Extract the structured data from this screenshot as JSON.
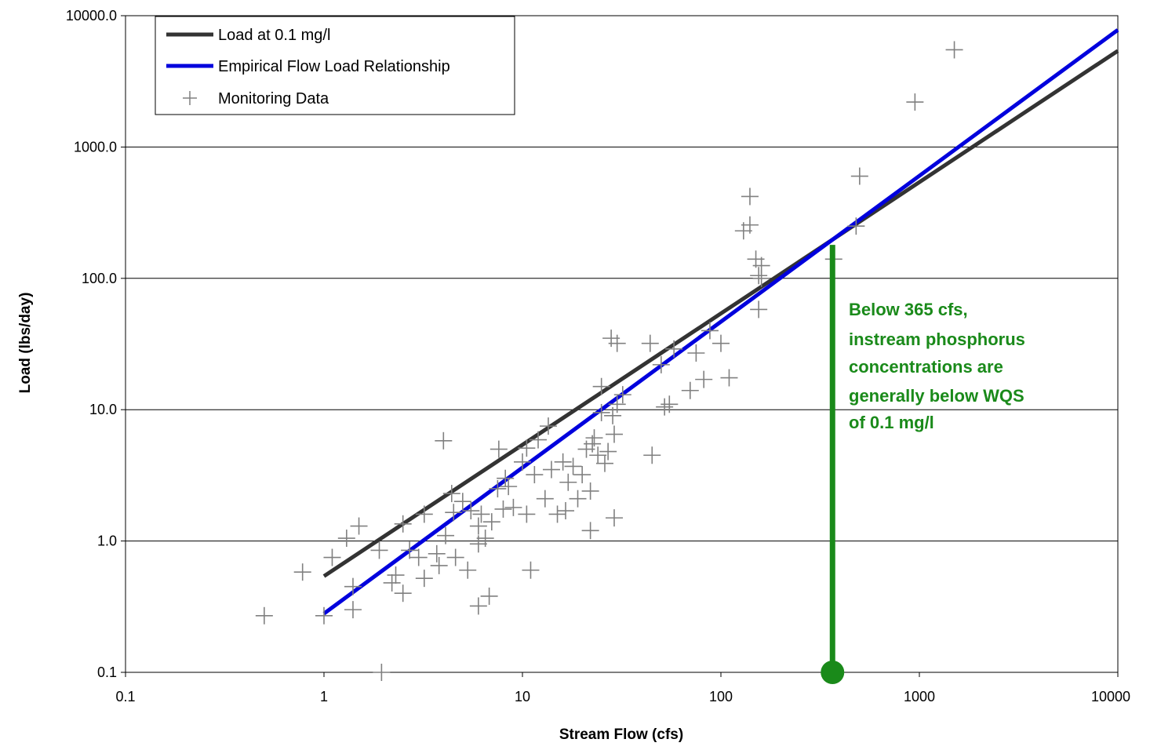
{
  "chart_data": {
    "type": "scatter",
    "title": "",
    "xlabel": "Stream Flow (cfs)",
    "ylabel": "Load (lbs/day)",
    "x_scale": "log",
    "y_scale": "log",
    "xlim": [
      0.1,
      10000
    ],
    "ylim": [
      0.1,
      10000
    ],
    "x_ticks": [
      "0.1",
      "1",
      "10",
      "100",
      "1000",
      "10000"
    ],
    "y_ticks": [
      "0.1",
      "1.0",
      "10.0",
      "100.0",
      "1000.0",
      "10000.0"
    ],
    "grid": "horizontal",
    "legend_position": "top-left",
    "colors": {
      "load_line": "#333333",
      "empirical_line": "#0000dd",
      "monitoring_marker": "#808080",
      "annotation": "#1a8a1a"
    },
    "series": [
      {
        "name": "Load at 0.1 mg/l",
        "kind": "line",
        "x": [
          1,
          10,
          100,
          1000,
          3000,
          5000,
          10000
        ],
        "y": [
          0.54,
          5.4,
          54,
          540,
          1620,
          2700,
          5400
        ]
      },
      {
        "name": "Empirical Flow Load Relationship",
        "kind": "line",
        "x": [
          1,
          10000
        ],
        "y": [
          0.28,
          7800
        ]
      },
      {
        "name": "Monitoring Data",
        "kind": "scatter",
        "points": [
          [
            0.5,
            0.27
          ],
          [
            0.78,
            0.58
          ],
          [
            1.0,
            0.27
          ],
          [
            1.1,
            0.75
          ],
          [
            1.3,
            1.05
          ],
          [
            1.4,
            0.3
          ],
          [
            1.4,
            0.45
          ],
          [
            1.5,
            1.3
          ],
          [
            1.9,
            0.85
          ],
          [
            1.95,
            0.1
          ],
          [
            2.2,
            0.48
          ],
          [
            2.3,
            0.55
          ],
          [
            2.5,
            1.35
          ],
          [
            2.5,
            0.4
          ],
          [
            2.7,
            0.85
          ],
          [
            3.0,
            0.75
          ],
          [
            3.2,
            1.6
          ],
          [
            3.2,
            0.52
          ],
          [
            3.7,
            0.8
          ],
          [
            3.8,
            0.65
          ],
          [
            4.0,
            5.8
          ],
          [
            4.1,
            1.1
          ],
          [
            4.4,
            2.3
          ],
          [
            4.5,
            1.65
          ],
          [
            4.6,
            0.75
          ],
          [
            5.0,
            2.0
          ],
          [
            5.3,
            0.6
          ],
          [
            5.5,
            1.7
          ],
          [
            6.0,
            1.3
          ],
          [
            6.0,
            0.95
          ],
          [
            6.0,
            0.32
          ],
          [
            6.2,
            1.6
          ],
          [
            6.5,
            1.05
          ],
          [
            6.8,
            0.38
          ],
          [
            7.0,
            1.4
          ],
          [
            7.5,
            2.5
          ],
          [
            7.6,
            5.0
          ],
          [
            8.0,
            1.75
          ],
          [
            8.2,
            3.0
          ],
          [
            8.5,
            2.6
          ],
          [
            9.0,
            1.8
          ],
          [
            10.0,
            4.0
          ],
          [
            10.5,
            5.1
          ],
          [
            10.5,
            1.6
          ],
          [
            11.0,
            0.6
          ],
          [
            11.5,
            3.2
          ],
          [
            12.0,
            5.9
          ],
          [
            13.0,
            2.1
          ],
          [
            13.5,
            7.5
          ],
          [
            14.0,
            3.5
          ],
          [
            15.0,
            1.6
          ],
          [
            16.0,
            4.0
          ],
          [
            16.5,
            1.7
          ],
          [
            17.0,
            2.8
          ],
          [
            18.0,
            3.7
          ],
          [
            19.0,
            2.1
          ],
          [
            20.0,
            3.2
          ],
          [
            21.0,
            5.0
          ],
          [
            22.0,
            2.4
          ],
          [
            22.0,
            1.2
          ],
          [
            22.5,
            5.5
          ],
          [
            23.0,
            6.1
          ],
          [
            24.0,
            4.5
          ],
          [
            25.0,
            15.0
          ],
          [
            25.0,
            9.5
          ],
          [
            26.0,
            3.9
          ],
          [
            27.0,
            4.8
          ],
          [
            28.0,
            35.0
          ],
          [
            28.5,
            9.0
          ],
          [
            29.0,
            1.5
          ],
          [
            29.0,
            6.5
          ],
          [
            30.0,
            32.0
          ],
          [
            30.0,
            11.0
          ],
          [
            32.0,
            13.0
          ],
          [
            44.0,
            32.0
          ],
          [
            45.0,
            4.5
          ],
          [
            50.0,
            22.0
          ],
          [
            52.0,
            10.5
          ],
          [
            55.0,
            11.0
          ],
          [
            58.0,
            29.0
          ],
          [
            70.0,
            14.0
          ],
          [
            75.0,
            27.0
          ],
          [
            82.0,
            17.0
          ],
          [
            88.0,
            40.0
          ],
          [
            100.0,
            32.0
          ],
          [
            110.0,
            17.5
          ],
          [
            130.0,
            230.0
          ],
          [
            140.0,
            255.0
          ],
          [
            140.0,
            420.0
          ],
          [
            150.0,
            140.0
          ],
          [
            155.0,
            105.0
          ],
          [
            155.0,
            58.0
          ],
          [
            160.0,
            125.0
          ],
          [
            160.0,
            100.0
          ],
          [
            370.0,
            140.0
          ],
          [
            480.0,
            250.0
          ],
          [
            500.0,
            600.0
          ],
          [
            950.0,
            2200.0
          ],
          [
            1500.0,
            5500.0
          ]
        ]
      }
    ],
    "reference_marker": {
      "x": 365,
      "y_top": 180,
      "y_bottom": 0.1
    },
    "annotation_lines": [
      "Below 365 cfs,",
      "instream phosphorus",
      "concentrations are",
      "generally below WQS",
      "of 0.1 mg/l"
    ]
  }
}
